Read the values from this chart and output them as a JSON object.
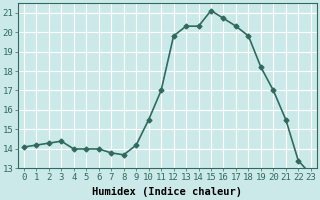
{
  "x": [
    0,
    1,
    2,
    3,
    4,
    5,
    6,
    7,
    8,
    9,
    10,
    11,
    12,
    13,
    14,
    15,
    16,
    17,
    18,
    19,
    20,
    21,
    22,
    23
  ],
  "y": [
    14.1,
    14.2,
    14.3,
    14.4,
    14.0,
    14.0,
    14.0,
    13.8,
    13.7,
    14.2,
    15.5,
    17.0,
    19.8,
    20.3,
    20.3,
    21.1,
    20.7,
    20.3,
    19.8,
    18.2,
    17.0,
    15.5,
    13.4,
    12.7
  ],
  "line_color": "#2e6b5e",
  "marker": "D",
  "marker_size": 2.5,
  "xlabel": "Humidex (Indice chaleur)",
  "xlim": [
    -0.5,
    23.5
  ],
  "ylim": [
    13,
    21.5
  ],
  "yticks": [
    13,
    14,
    15,
    16,
    17,
    18,
    19,
    20,
    21
  ],
  "xticks": [
    0,
    1,
    2,
    3,
    4,
    5,
    6,
    7,
    8,
    9,
    10,
    11,
    12,
    13,
    14,
    15,
    16,
    17,
    18,
    19,
    20,
    21,
    22,
    23
  ],
  "background_color": "#cce9e9",
  "grid_color": "#ffffff",
  "tick_fontsize": 6.5,
  "label_fontsize": 7.5,
  "line_width": 1.2
}
